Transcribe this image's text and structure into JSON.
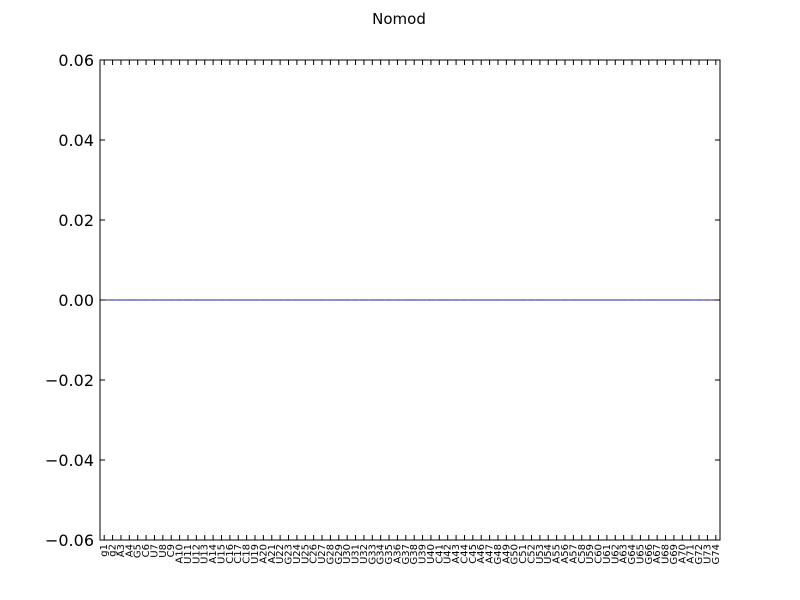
{
  "chart_data": {
    "type": "bar",
    "title": "Nomod",
    "xlabel": "",
    "ylabel": "",
    "ylim": [
      -0.06,
      0.06
    ],
    "yticks": [
      "0.06",
      "0.04",
      "0.02",
      "0.00",
      "−0.02",
      "−0.04",
      "−0.06"
    ],
    "grid": false,
    "categories": [
      "g1",
      "g2",
      "A3",
      "A4",
      "G5",
      "C6",
      "U7",
      "U8",
      "C9",
      "A10",
      "U11",
      "U12",
      "U13",
      "A14",
      "U15",
      "C16",
      "C17",
      "C18",
      "U19",
      "A20",
      "A21",
      "U22",
      "G23",
      "U24",
      "U25",
      "C26",
      "U27",
      "G28",
      "G29",
      "U30",
      "U31",
      "U32",
      "G33",
      "G34",
      "G35",
      "A36",
      "G37",
      "G38",
      "U39",
      "U40",
      "C41",
      "U42",
      "A43",
      "C44",
      "C45",
      "A46",
      "A47",
      "G48",
      "A49",
      "G50",
      "C51",
      "C52",
      "U53",
      "U54",
      "A55",
      "A56",
      "A57",
      "C58",
      "U59",
      "C60",
      "U61",
      "U62",
      "A63",
      "G64",
      "U65",
      "G66",
      "A67",
      "U68",
      "G69",
      "A70",
      "A71",
      "G72",
      "U73",
      "G74"
    ],
    "values": [
      0,
      0,
      0,
      0,
      0,
      0,
      0,
      0,
      0,
      0,
      0,
      0,
      0,
      0,
      0,
      0,
      0,
      0,
      0,
      0,
      0,
      0,
      0,
      0,
      0,
      0,
      0,
      0,
      0,
      0,
      0,
      0,
      0,
      0,
      0,
      0,
      0,
      0,
      0,
      0,
      0,
      0,
      0,
      0,
      0,
      0,
      0,
      0,
      0,
      0,
      0,
      0,
      0,
      0,
      0,
      0,
      0,
      0,
      0,
      0,
      0,
      0,
      0,
      0,
      0,
      0,
      0,
      0,
      0,
      0,
      0,
      0,
      0,
      0
    ],
    "bar_color": "#1f1f8f"
  }
}
